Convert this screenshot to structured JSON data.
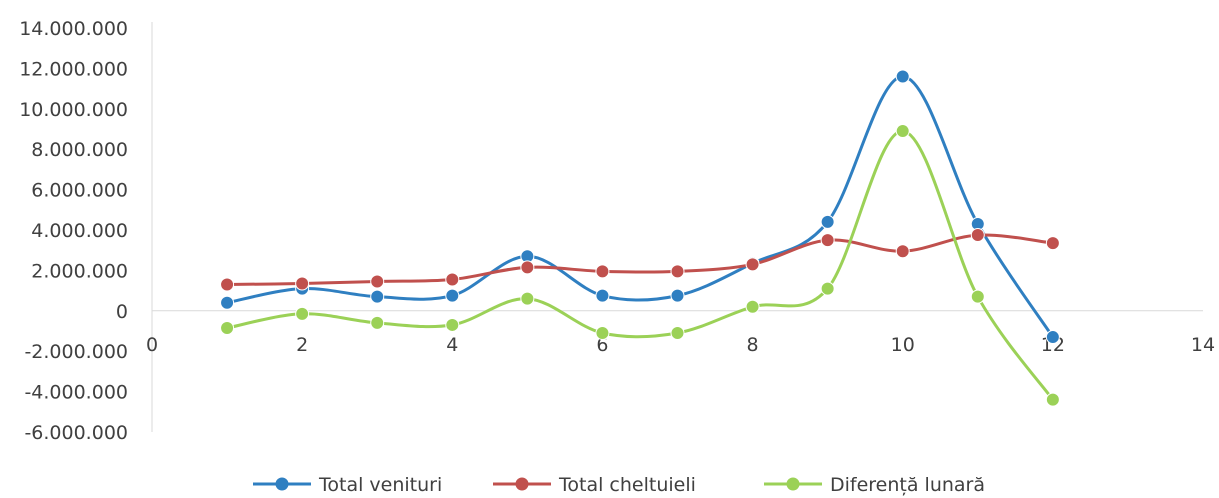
{
  "chart_data": {
    "type": "scatter",
    "x": [
      1,
      2,
      3,
      4,
      5,
      6,
      7,
      8,
      9,
      10,
      11,
      12
    ],
    "series": [
      {
        "name": "Total venituri",
        "color": "#2f7fc1",
        "values": [
          400000,
          1100000,
          700000,
          750000,
          2700000,
          750000,
          750000,
          2350000,
          4400000,
          11600000,
          4300000,
          -1300000
        ]
      },
      {
        "name": "Total cheltuieli",
        "color": "#c0504d",
        "values": [
          1300000,
          1350000,
          1450000,
          1550000,
          2150000,
          1950000,
          1950000,
          2300000,
          3500000,
          2950000,
          3750000,
          3350000
        ]
      },
      {
        "name": "Diferență lunară",
        "color": "#9bd157",
        "values": [
          -850000,
          -150000,
          -600000,
          -700000,
          600000,
          -1100000,
          -1100000,
          200000,
          1100000,
          8900000,
          700000,
          -4400000
        ]
      }
    ],
    "xlim": [
      0,
      14
    ],
    "ylim": [
      -6000000,
      14000000
    ],
    "x_ticks": [
      "0",
      "2",
      "4",
      "6",
      "8",
      "10",
      "12",
      "14"
    ],
    "y_ticks": [
      "14.000.000",
      "12.000.000",
      "10.000.000",
      "8.000.000",
      "6.000.000",
      "4.000.000",
      "2.000.000",
      "0",
      "-2.000.000",
      "-4.000.000",
      "-6.000.000"
    ],
    "smooth_lines": true,
    "markers": true,
    "grid": false,
    "legend_position": "bottom"
  }
}
